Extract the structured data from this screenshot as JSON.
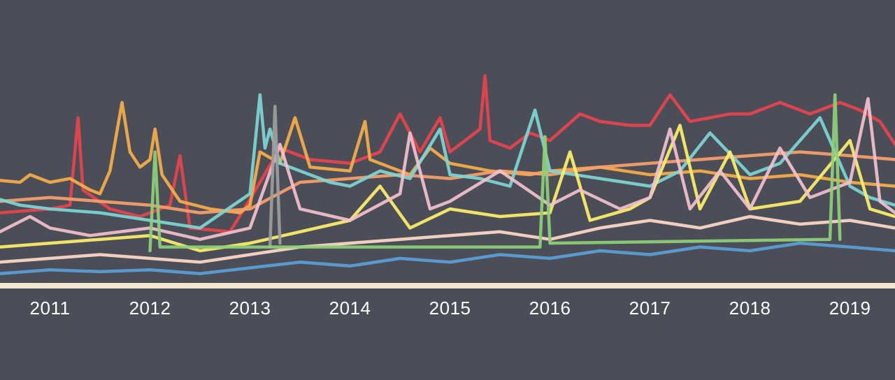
{
  "theme": {
    "background": "#4b4e57",
    "baseline": "#f3e7d3",
    "label_color": "#ffffff"
  },
  "chart_data": {
    "type": "line",
    "title": "",
    "xlabel": "",
    "ylabel": "",
    "xlim": [
      2010.5,
      2019.45
    ],
    "ylim": [
      0,
      100
    ],
    "grid": false,
    "legend": "none",
    "x_ticks": [
      {
        "value": 2011,
        "label": "2011"
      },
      {
        "value": 2012,
        "label": "2012"
      },
      {
        "value": 2013,
        "label": "2013"
      },
      {
        "value": 2014,
        "label": "2014"
      },
      {
        "value": 2015,
        "label": "2015"
      },
      {
        "value": 2016,
        "label": "2016"
      },
      {
        "value": 2017,
        "label": "2017"
      },
      {
        "value": 2018,
        "label": "2018"
      },
      {
        "value": 2019,
        "label": "2019"
      }
    ],
    "series": [
      {
        "color": "#e8434f",
        "points": [
          [
            2010.5,
            38
          ],
          [
            2011,
            40
          ],
          [
            2011.2,
            42
          ],
          [
            2011.28,
            88
          ],
          [
            2011.33,
            50
          ],
          [
            2011.6,
            40
          ],
          [
            2011.9,
            36
          ],
          [
            2012.2,
            42
          ],
          [
            2012.3,
            68
          ],
          [
            2012.4,
            30
          ],
          [
            2012.8,
            28
          ],
          [
            2013,
            45
          ],
          [
            2013.3,
            72
          ],
          [
            2013.6,
            66
          ],
          [
            2014,
            64
          ],
          [
            2014.3,
            70
          ],
          [
            2014.5,
            90
          ],
          [
            2014.7,
            70
          ],
          [
            2014.9,
            88
          ],
          [
            2015,
            70
          ],
          [
            2015.3,
            82
          ],
          [
            2015.35,
            110
          ],
          [
            2015.4,
            76
          ],
          [
            2015.6,
            72
          ],
          [
            2015.8,
            80
          ],
          [
            2016,
            76
          ],
          [
            2016.3,
            90
          ],
          [
            2016.5,
            86
          ],
          [
            2016.8,
            84
          ],
          [
            2017,
            84
          ],
          [
            2017.2,
            100
          ],
          [
            2017.4,
            86
          ],
          [
            2017.6,
            88
          ],
          [
            2017.8,
            90
          ],
          [
            2018,
            90
          ],
          [
            2018.3,
            96
          ],
          [
            2018.6,
            90
          ],
          [
            2018.9,
            96
          ],
          [
            2019.1,
            92
          ],
          [
            2019.3,
            86
          ],
          [
            2019.45,
            74
          ]
        ]
      },
      {
        "color": "#f6ae4a",
        "points": [
          [
            2010.5,
            55
          ],
          [
            2010.7,
            54
          ],
          [
            2010.8,
            58
          ],
          [
            2011,
            54
          ],
          [
            2011.2,
            56
          ],
          [
            2011.4,
            50
          ],
          [
            2011.5,
            48
          ],
          [
            2011.6,
            60
          ],
          [
            2011.72,
            96
          ],
          [
            2011.8,
            70
          ],
          [
            2011.9,
            62
          ],
          [
            2012,
            66
          ],
          [
            2012.05,
            82
          ],
          [
            2012.12,
            58
          ],
          [
            2012.3,
            44
          ],
          [
            2012.6,
            40
          ],
          [
            2012.9,
            38
          ],
          [
            2013,
            42
          ],
          [
            2013.1,
            70
          ],
          [
            2013.3,
            64
          ],
          [
            2013.45,
            88
          ],
          [
            2013.6,
            62
          ],
          [
            2014,
            60
          ],
          [
            2014.15,
            86
          ],
          [
            2014.2,
            66
          ],
          [
            2014.4,
            62
          ],
          [
            2014.6,
            58
          ],
          [
            2014.8,
            72
          ],
          [
            2015,
            64
          ],
          [
            2015.4,
            60
          ],
          [
            2015.8,
            58
          ],
          [
            2016,
            60
          ],
          [
            2016.5,
            62
          ],
          [
            2017,
            58
          ],
          [
            2017.5,
            60
          ],
          [
            2018,
            56
          ],
          [
            2018.5,
            58
          ],
          [
            2019,
            54
          ],
          [
            2019.45,
            52
          ]
        ]
      },
      {
        "color": "#f7a06c",
        "points": [
          [
            2010.5,
            44
          ],
          [
            2011,
            46
          ],
          [
            2011.5,
            44
          ],
          [
            2012,
            42
          ],
          [
            2012.5,
            38
          ],
          [
            2013,
            40
          ],
          [
            2013.5,
            54
          ],
          [
            2014,
            56
          ],
          [
            2014.5,
            58
          ],
          [
            2015,
            56
          ],
          [
            2015.5,
            60
          ],
          [
            2016,
            58
          ],
          [
            2016.5,
            62
          ],
          [
            2017,
            64
          ],
          [
            2017.5,
            66
          ],
          [
            2018,
            68
          ],
          [
            2018.5,
            70
          ],
          [
            2019,
            68
          ],
          [
            2019.45,
            66
          ]
        ]
      },
      {
        "color": "#7dd6d6",
        "points": [
          [
            2010.5,
            45
          ],
          [
            2010.7,
            42
          ],
          [
            2011,
            40
          ],
          [
            2011.5,
            38
          ],
          [
            2012,
            34
          ],
          [
            2012.5,
            30
          ],
          [
            2013,
            48
          ],
          [
            2013.1,
            100
          ],
          [
            2013.15,
            72
          ],
          [
            2013.2,
            82
          ],
          [
            2013.3,
            64
          ],
          [
            2013.6,
            58
          ],
          [
            2013.8,
            54
          ],
          [
            2014,
            52
          ],
          [
            2014.3,
            60
          ],
          [
            2014.6,
            56
          ],
          [
            2014.9,
            82
          ],
          [
            2015,
            58
          ],
          [
            2015.3,
            56
          ],
          [
            2015.6,
            52
          ],
          [
            2015.85,
            92
          ],
          [
            2016,
            60
          ],
          [
            2016.5,
            56
          ],
          [
            2017,
            52
          ],
          [
            2017.3,
            60
          ],
          [
            2017.6,
            80
          ],
          [
            2018,
            58
          ],
          [
            2018.3,
            64
          ],
          [
            2018.7,
            88
          ],
          [
            2019,
            52
          ],
          [
            2019.2,
            46
          ],
          [
            2019.45,
            42
          ]
        ]
      },
      {
        "color": "#fff06a",
        "points": [
          [
            2010.5,
            20
          ],
          [
            2011,
            22
          ],
          [
            2011.5,
            24
          ],
          [
            2012,
            26
          ],
          [
            2012.5,
            18
          ],
          [
            2013,
            22
          ],
          [
            2013.5,
            28
          ],
          [
            2014,
            34
          ],
          [
            2014.3,
            52
          ],
          [
            2014.6,
            30
          ],
          [
            2015,
            40
          ],
          [
            2015.5,
            36
          ],
          [
            2016,
            38
          ],
          [
            2016.2,
            70
          ],
          [
            2016.4,
            34
          ],
          [
            2016.8,
            40
          ],
          [
            2017,
            46
          ],
          [
            2017.3,
            84
          ],
          [
            2017.5,
            40
          ],
          [
            2017.8,
            70
          ],
          [
            2018,
            40
          ],
          [
            2018.5,
            44
          ],
          [
            2019,
            76
          ],
          [
            2019.2,
            40
          ],
          [
            2019.45,
            36
          ]
        ]
      },
      {
        "color": "#f3c1cf",
        "points": [
          [
            2010.5,
            28
          ],
          [
            2010.8,
            36
          ],
          [
            2011,
            30
          ],
          [
            2011.4,
            26
          ],
          [
            2012,
            30
          ],
          [
            2012.5,
            24
          ],
          [
            2013,
            30
          ],
          [
            2013.3,
            74
          ],
          [
            2013.5,
            40
          ],
          [
            2014,
            34
          ],
          [
            2014.5,
            48
          ],
          [
            2014.6,
            80
          ],
          [
            2014.8,
            40
          ],
          [
            2015,
            44
          ],
          [
            2015.5,
            60
          ],
          [
            2016,
            42
          ],
          [
            2016.3,
            50
          ],
          [
            2016.7,
            40
          ],
          [
            2017,
            46
          ],
          [
            2017.2,
            82
          ],
          [
            2017.4,
            40
          ],
          [
            2017.7,
            60
          ],
          [
            2018,
            40
          ],
          [
            2018.3,
            72
          ],
          [
            2018.6,
            46
          ],
          [
            2019,
            54
          ],
          [
            2019.18,
            98
          ],
          [
            2019.3,
            44
          ],
          [
            2019.45,
            38
          ]
        ]
      },
      {
        "color": "#ffd9c9",
        "points": [
          [
            2010.5,
            12
          ],
          [
            2011,
            14
          ],
          [
            2011.5,
            16
          ],
          [
            2012,
            14
          ],
          [
            2012.5,
            12
          ],
          [
            2013,
            16
          ],
          [
            2013.5,
            20
          ],
          [
            2014,
            22
          ],
          [
            2014.5,
            24
          ],
          [
            2015,
            26
          ],
          [
            2015.5,
            28
          ],
          [
            2016,
            24
          ],
          [
            2016.5,
            30
          ],
          [
            2017,
            34
          ],
          [
            2017.5,
            30
          ],
          [
            2018,
            36
          ],
          [
            2018.5,
            32
          ],
          [
            2019,
            34
          ],
          [
            2019.45,
            30
          ]
        ]
      },
      {
        "color": "#5aa0d8",
        "points": [
          [
            2010.5,
            6
          ],
          [
            2011,
            8
          ],
          [
            2011.5,
            7
          ],
          [
            2012,
            8
          ],
          [
            2012.5,
            6
          ],
          [
            2013,
            9
          ],
          [
            2013.5,
            12
          ],
          [
            2014,
            10
          ],
          [
            2014.5,
            14
          ],
          [
            2015,
            12
          ],
          [
            2015.5,
            16
          ],
          [
            2016,
            14
          ],
          [
            2016.5,
            18
          ],
          [
            2017,
            16
          ],
          [
            2017.5,
            20
          ],
          [
            2018,
            18
          ],
          [
            2018.5,
            22
          ],
          [
            2019,
            20
          ],
          [
            2019.45,
            18
          ]
        ]
      },
      {
        "color": "#9e9e9e",
        "points": [
          [
            2013.2,
            20
          ],
          [
            2013.25,
            94
          ],
          [
            2013.3,
            22
          ]
        ]
      },
      {
        "color": "#8fd07a",
        "points": [
          [
            2012.0,
            18
          ],
          [
            2012.05,
            70
          ],
          [
            2012.1,
            20
          ],
          [
            2015.9,
            20
          ],
          [
            2015.95,
            78
          ],
          [
            2016.0,
            22
          ],
          [
            2018.8,
            24
          ],
          [
            2018.85,
            100
          ],
          [
            2018.9,
            24
          ]
        ]
      }
    ]
  }
}
